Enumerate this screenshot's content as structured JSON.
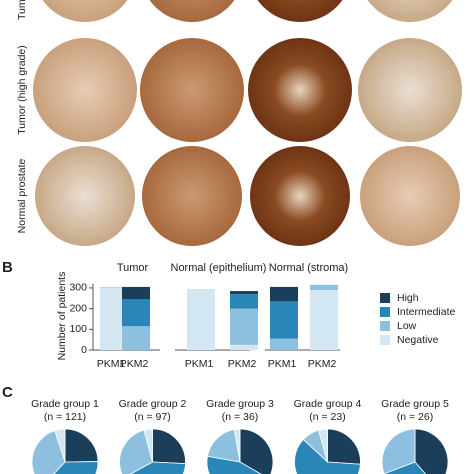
{
  "panel_labels": [
    "B",
    "C"
  ],
  "panel_a": {
    "row_labels": [
      "Tumor",
      "Tumor (high grade)",
      "Normal prostate"
    ]
  },
  "chart_data": [
    {
      "type": "bar",
      "stacked": true,
      "y_label": "Number of patients",
      "group_titles": [
        "Tumor",
        "Normal (epithelium)",
        "Normal (stroma)"
      ],
      "categories": [
        "PKM1",
        "PKM2",
        "PKM1",
        "PKM2",
        "PKM1",
        "PKM2"
      ],
      "ylim": [
        0,
        320
      ],
      "yticks": [
        0,
        100,
        200,
        300
      ],
      "series": [
        {
          "name": "High",
          "color": "#1b3e5a",
          "values": [
            0,
            60,
            0,
            15,
            70,
            0
          ]
        },
        {
          "name": "Intermediate",
          "color": "#2b86b8",
          "values": [
            0,
            130,
            0,
            70,
            180,
            0
          ]
        },
        {
          "name": "Low",
          "color": "#8cc0de",
          "values": [
            3,
            115,
            0,
            175,
            55,
            25
          ]
        },
        {
          "name": "Negative",
          "color": "#d3e7f3",
          "values": [
            300,
            0,
            295,
            25,
            0,
            290
          ]
        }
      ]
    },
    {
      "type": "pie",
      "title": "Grade group 1",
      "subtitle": "(n = 121)",
      "colors": [
        "#1b3e5a",
        "#2b86b8",
        "#8cc0de",
        "#d3e7f3"
      ],
      "values": [
        30,
        45,
        40,
        6
      ]
    },
    {
      "type": "pie",
      "title": "Grade group 2",
      "subtitle": "(n = 97)",
      "colors": [
        "#1b3e5a",
        "#2b86b8",
        "#8cc0de",
        "#d3e7f3"
      ],
      "values": [
        25,
        40,
        28,
        4
      ]
    },
    {
      "type": "pie",
      "title": "Grade group 3",
      "subtitle": "(n = 36)",
      "colors": [
        "#1b3e5a",
        "#2b86b8",
        "#8cc0de",
        "#d3e7f3"
      ],
      "values": [
        12,
        16,
        7,
        1
      ]
    },
    {
      "type": "pie",
      "title": "Grade group 4",
      "subtitle": "(n = 23)",
      "colors": [
        "#1b3e5a",
        "#2b86b8",
        "#8cc0de",
        "#d3e7f3"
      ],
      "values": [
        6,
        14,
        2,
        1
      ]
    },
    {
      "type": "pie",
      "title": "Grade group 5",
      "subtitle": "(n = 26)",
      "colors": [
        "#1b3e5a",
        "#2b86b8",
        "#8cc0de",
        "#d3e7f3"
      ],
      "values": [
        10,
        8,
        8,
        0
      ]
    }
  ]
}
